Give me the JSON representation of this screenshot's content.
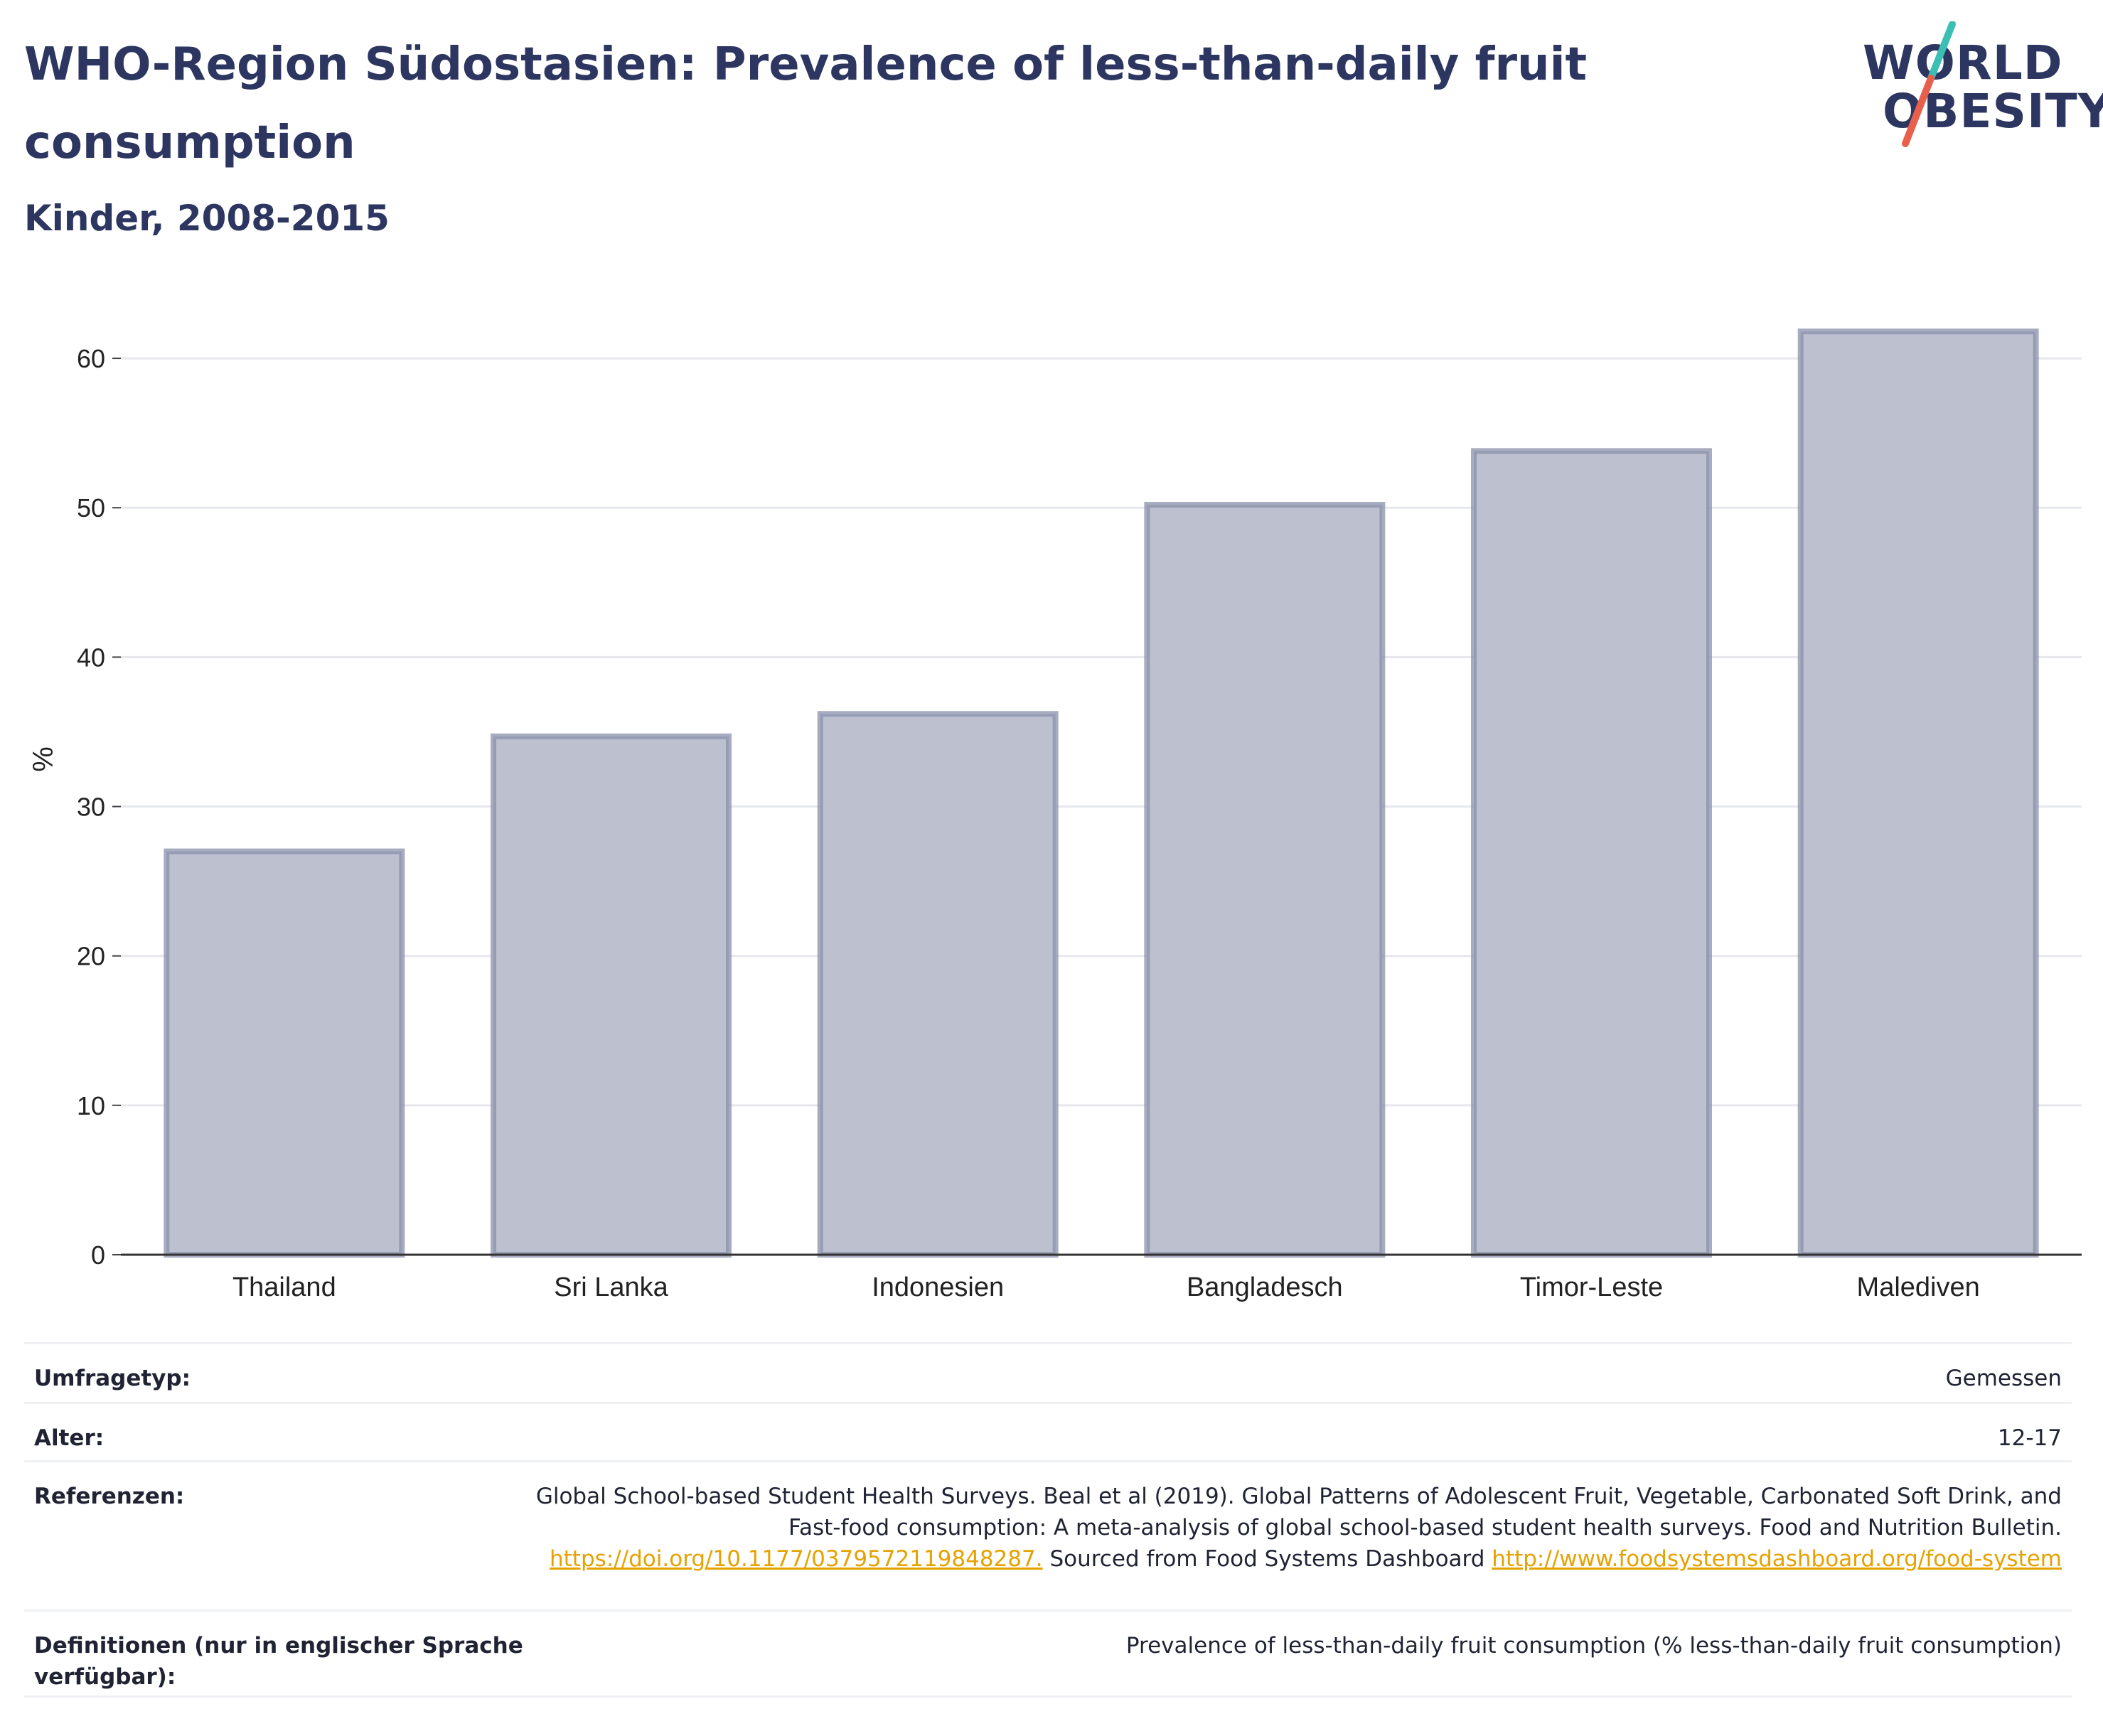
{
  "header": {
    "title": "WHO-Region Südostasien: Prevalence of less-than-daily fruit consumption",
    "subtitle": "Kinder, 2008-2015"
  },
  "logo": {
    "line1": "WORLD",
    "line2": "OBESITY",
    "slash_colors": [
      "#3bbfb5",
      "#e8604c"
    ]
  },
  "chart_data": {
    "type": "bar",
    "categories": [
      "Thailand",
      "Sri Lanka",
      "Indonesien",
      "Bangladesch",
      "Timor-Leste",
      "Malediven"
    ],
    "values": [
      27,
      34.7,
      36.2,
      50.2,
      53.8,
      61.8
    ],
    "ylabel": "%",
    "ylim": [
      0,
      64
    ],
    "yticks": [
      0,
      10,
      20,
      30,
      40,
      50,
      60
    ],
    "grid": true,
    "bar_fill": "#bcc0cf",
    "bar_stroke": "#8a90ab"
  },
  "table": {
    "survey_type_label": "Umfragetyp:",
    "survey_type_value": "Gemessen",
    "age_label": "Alter:",
    "age_value": "12-17",
    "references_label": "Referenzen:",
    "references_text_1": "Global School-based Student Health Surveys. Beal et al (2019). Global Patterns of Adolescent Fruit, Vegetable, Carbonated Soft Drink, and Fast-food consumption: A meta-analysis of global school-based student health surveys. Food and Nutrition Bulletin.",
    "references_link_1": "https://doi.org/10.1177/0379572119848287.",
    "references_text_2": "Sourced from Food Systems Dashboard",
    "references_link_2": "http://www.foodsystemsdashboard.org/food-system",
    "definitions_label": "Definitionen (nur in englischer Sprache verfügbar):",
    "definitions_value": "Prevalence of less-than-daily fruit consumption (% less-than-daily fruit consumption)"
  }
}
